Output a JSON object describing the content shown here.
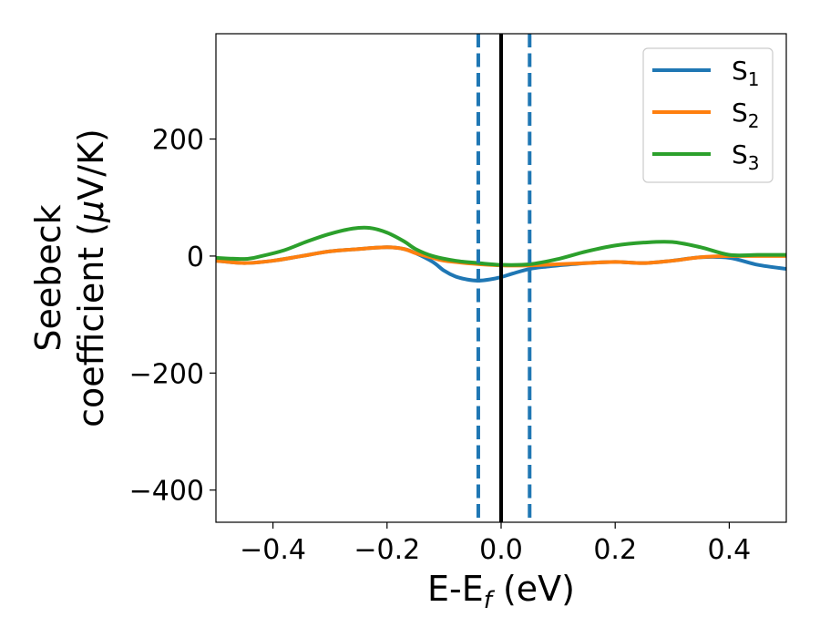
{
  "chart_data": {
    "type": "line",
    "title": "",
    "xlabel": {
      "main": "E-E",
      "sub": "f",
      "tail": " (eV)"
    },
    "ylabel": {
      "line1": "Seebeck",
      "line2_a": "coefficient  (",
      "line2_mu": "μ",
      "line2_b": "V/K)"
    },
    "xlim": [
      -0.5,
      0.5
    ],
    "ylim": [
      -455,
      380
    ],
    "xticks": [
      -0.4,
      -0.2,
      0.0,
      0.2,
      0.4
    ],
    "xtick_labels": [
      "−0.4",
      "−0.2",
      "0.0",
      "0.2",
      "0.4"
    ],
    "yticks": [
      -400,
      -200,
      0,
      200
    ],
    "ytick_labels": [
      "−400",
      "−200",
      "0",
      "200"
    ],
    "grid": false,
    "legend_placement": "top-right",
    "series": [
      {
        "name": "S1",
        "name_main": "S",
        "name_sub": "1",
        "color": "#1f77b4",
        "x": [
          -0.5,
          -0.45,
          -0.4,
          -0.35,
          -0.3,
          -0.25,
          -0.2,
          -0.17,
          -0.15,
          -0.12,
          -0.1,
          -0.08,
          -0.06,
          -0.04,
          -0.02,
          0.0,
          0.02,
          0.05,
          0.08,
          0.1,
          0.15,
          0.2,
          0.25,
          0.3,
          0.35,
          0.4,
          0.45,
          0.5
        ],
        "y": [
          -8,
          -12,
          -8,
          0,
          8,
          12,
          15,
          12,
          5,
          -10,
          -25,
          -35,
          -40,
          -42,
          -40,
          -36,
          -30,
          -22,
          -18,
          -16,
          -12,
          -10,
          -12,
          -8,
          -2,
          -3,
          -15,
          -22
        ]
      },
      {
        "name": "S2",
        "name_main": "S",
        "name_sub": "2",
        "color": "#ff7f0e",
        "x": [
          -0.5,
          -0.45,
          -0.4,
          -0.35,
          -0.3,
          -0.25,
          -0.2,
          -0.17,
          -0.15,
          -0.12,
          -0.1,
          -0.05,
          0.0,
          0.05,
          0.1,
          0.15,
          0.2,
          0.25,
          0.3,
          0.35,
          0.4,
          0.45,
          0.5
        ],
        "y": [
          -8,
          -12,
          -8,
          0,
          8,
          12,
          15,
          12,
          5,
          -3,
          -8,
          -13,
          -16,
          -16,
          -14,
          -12,
          -10,
          -12,
          -8,
          -2,
          0,
          0,
          0
        ]
      },
      {
        "name": "S3",
        "name_main": "S",
        "name_sub": "3",
        "color": "#2ca02c",
        "x": [
          -0.5,
          -0.45,
          -0.42,
          -0.38,
          -0.34,
          -0.3,
          -0.26,
          -0.23,
          -0.2,
          -0.17,
          -0.15,
          -0.12,
          -0.08,
          -0.04,
          0.0,
          0.05,
          0.1,
          0.15,
          0.2,
          0.25,
          0.3,
          0.35,
          0.4,
          0.45,
          0.5
        ],
        "y": [
          -3,
          -5,
          0,
          10,
          25,
          38,
          47,
          48,
          40,
          25,
          12,
          0,
          -8,
          -12,
          -15,
          -14,
          -5,
          8,
          18,
          23,
          24,
          15,
          2,
          2,
          2
        ]
      }
    ],
    "vertical_lines": [
      {
        "x": 0.0,
        "color": "#000000",
        "style": "solid"
      },
      {
        "x": -0.04,
        "color": "#1f77b4",
        "style": "dashed"
      },
      {
        "x": 0.05,
        "color": "#1f77b4",
        "style": "dashed"
      }
    ]
  }
}
